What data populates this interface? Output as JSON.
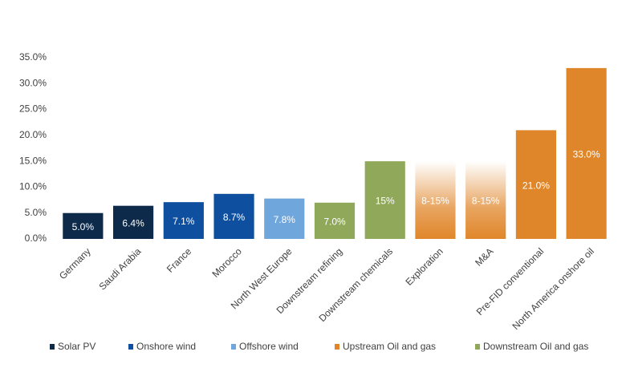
{
  "chart_data": {
    "type": "bar",
    "categories": [
      "Germany",
      "Saudi Arabia",
      "France",
      "Morocco",
      "North West Europe",
      "Downstream refining",
      "Downstream chemicals",
      "Exploration",
      "M&A",
      "Pre-FID conventional",
      "North America onshore oil"
    ],
    "values": [
      5.0,
      6.4,
      7.1,
      8.7,
      7.8,
      7.0,
      15,
      15,
      15,
      21.0,
      33.0
    ],
    "range_low": [
      null,
      null,
      null,
      null,
      null,
      null,
      null,
      8,
      8,
      null,
      null
    ],
    "value_labels": [
      "5.0%",
      "6.4%",
      "7.1%",
      "8.7%",
      "7.8%",
      "7.0%",
      "15%",
      "8-15%",
      "8-15%",
      "21.0%",
      "33.0%"
    ],
    "colors": [
      "#0d2a4a",
      "#0d2a4a",
      "#0e4fa0",
      "#0e4fa0",
      "#6fa6dc",
      "#8fa85a",
      "#8fa85a",
      "#e0862a",
      "#e0862a",
      "#e0862a",
      "#e0862a"
    ],
    "legend": [
      {
        "name": "Solar PV",
        "color": "#0d2a4a"
      },
      {
        "name": "Onshore wind",
        "color": "#0e4fa0"
      },
      {
        "name": "Offshore wind",
        "color": "#6fa6dc"
      },
      {
        "name": "Upstream Oil and gas",
        "color": "#e0862a"
      },
      {
        "name": "Downstream Oil and gas",
        "color": "#8fa85a"
      }
    ],
    "ylim": [
      0,
      35
    ],
    "yticks": [
      {
        "value": 0,
        "label": "0.0%"
      },
      {
        "value": 5,
        "label": "5.0%"
      },
      {
        "value": 10,
        "label": "10.0%"
      },
      {
        "value": 15,
        "label": "15.0%"
      },
      {
        "value": 20,
        "label": "20.0%"
      },
      {
        "value": 25,
        "label": "25.0%"
      },
      {
        "value": 30,
        "label": "30.0%"
      },
      {
        "value": 35,
        "label": "35.0%"
      }
    ],
    "grid": false
  }
}
